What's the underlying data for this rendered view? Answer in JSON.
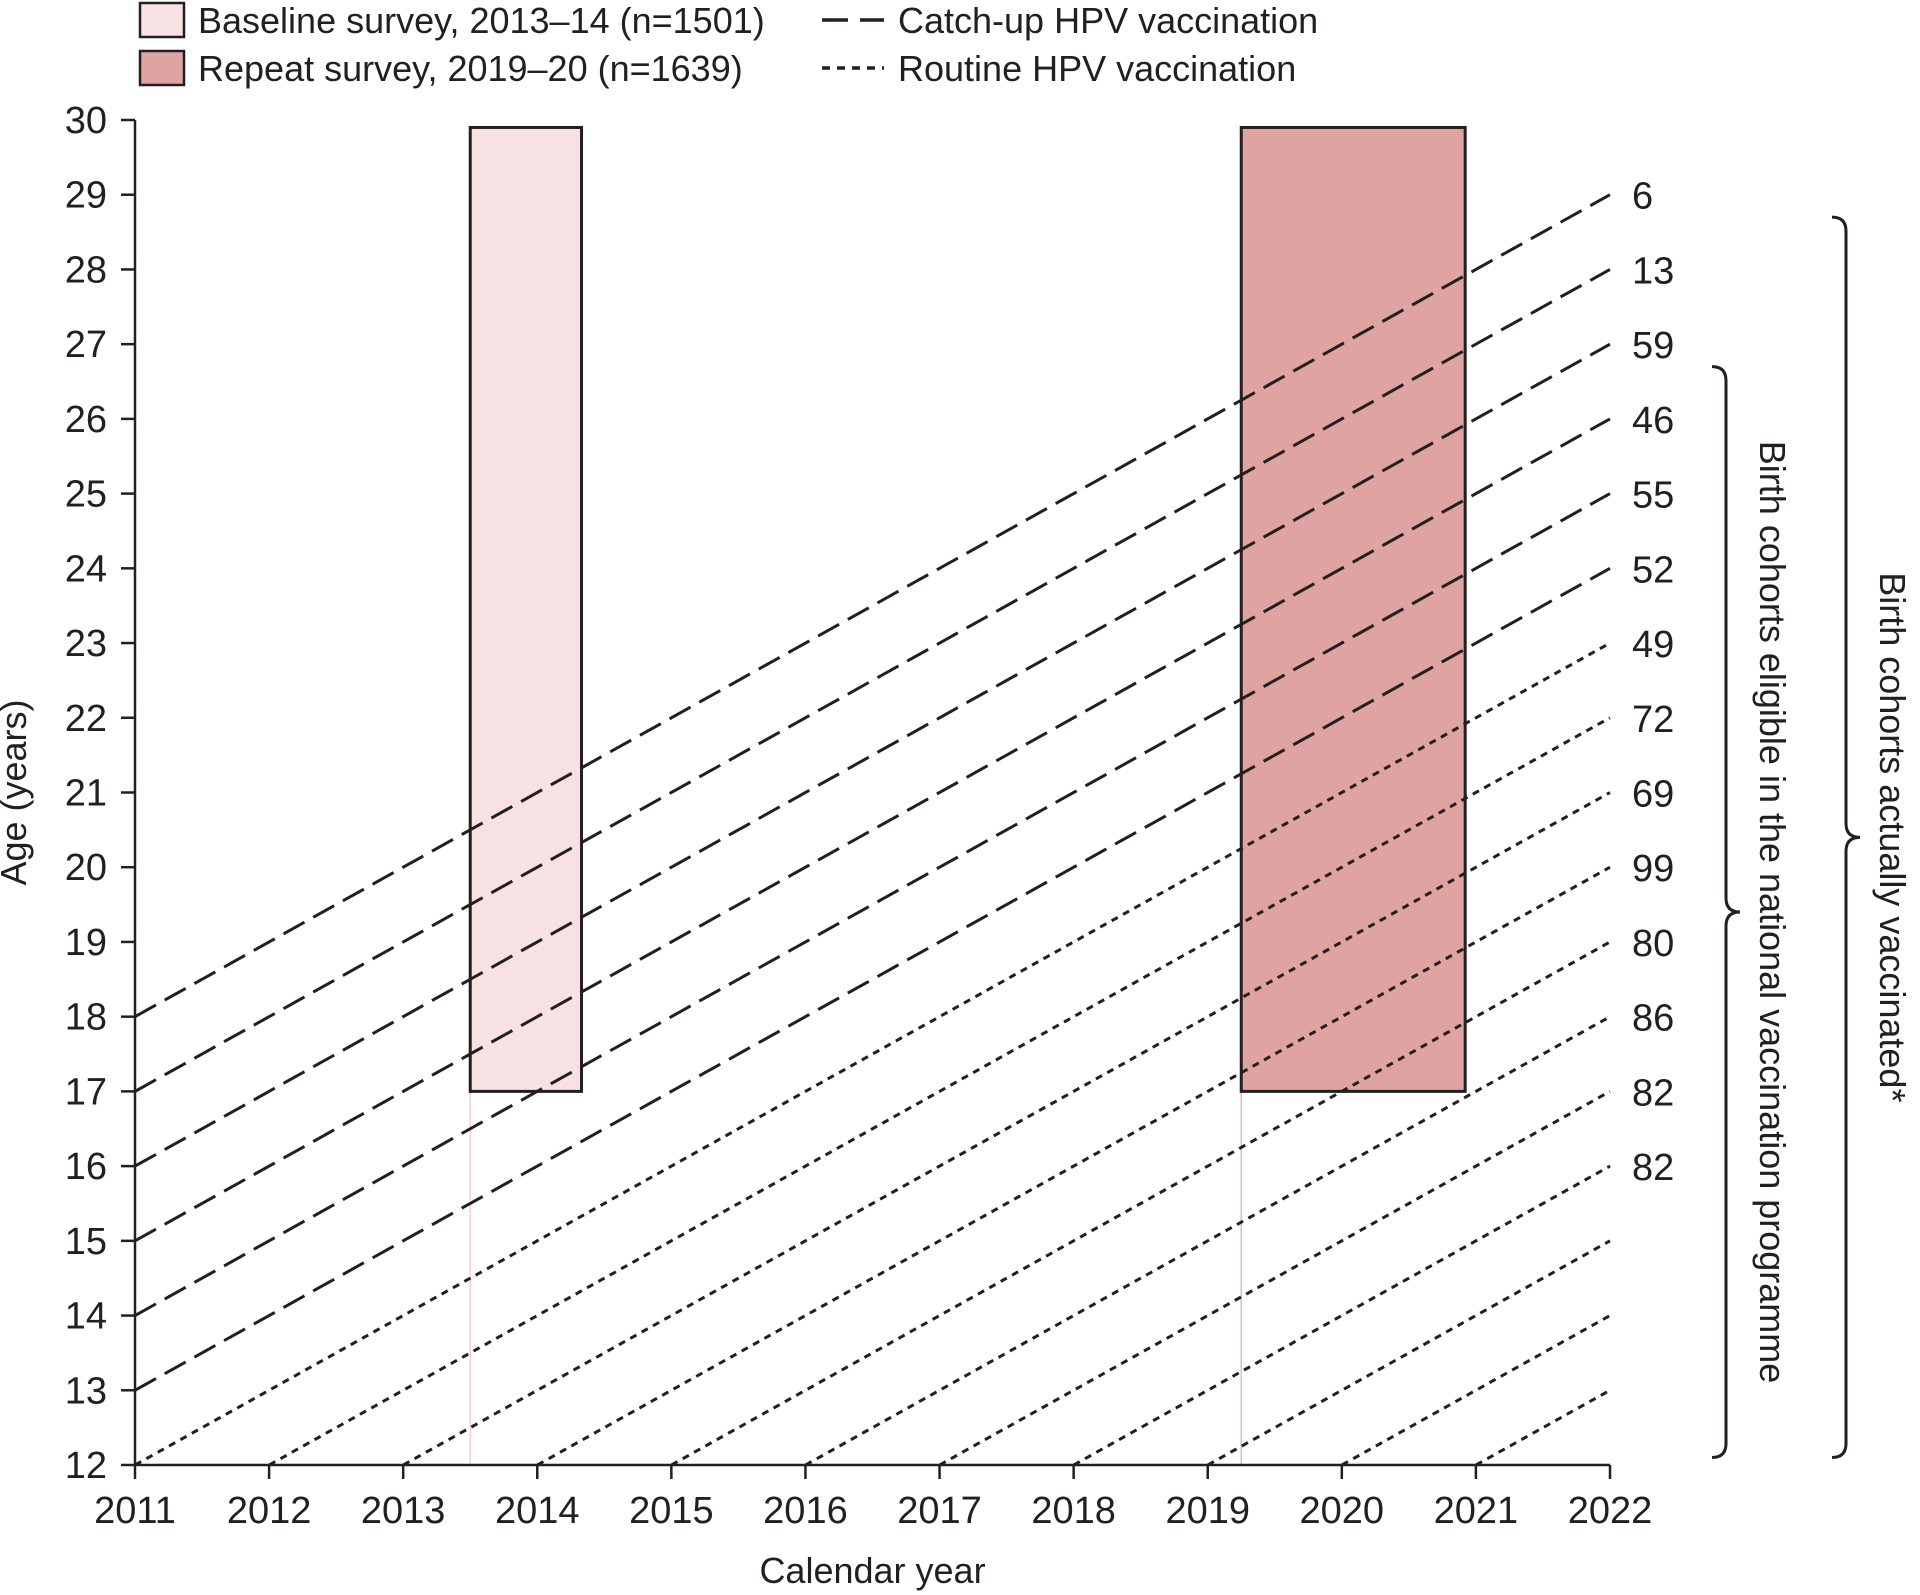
{
  "chart_data": {
    "type": "line",
    "title": "",
    "xlabel": "Calendar year",
    "ylabel": "Age (years)",
    "xlim": [
      2011,
      2022
    ],
    "ylim": [
      12,
      30
    ],
    "x_ticks": [
      "2011",
      "2012",
      "2013",
      "2014",
      "2015",
      "2016",
      "2017",
      "2018",
      "2019",
      "2020",
      "2021",
      "2022"
    ],
    "y_ticks": [
      "12",
      "13",
      "14",
      "15",
      "16",
      "17",
      "18",
      "19",
      "20",
      "21",
      "22",
      "23",
      "24",
      "25",
      "26",
      "27",
      "28",
      "29",
      "30"
    ],
    "grid": false,
    "legend": [
      {
        "label": "Baseline survey, 2013–14 (n=1501)",
        "kind": "box",
        "fill": "#f7e1e2"
      },
      {
        "label": "Repeat survey, 2019–20 (n=1639)",
        "kind": "box",
        "fill": "#dfa3a1"
      },
      {
        "label": "Catch-up HPV vaccination",
        "kind": "dashed"
      },
      {
        "label": "Routine HPV vaccination",
        "kind": "dotted"
      }
    ],
    "survey_boxes": [
      {
        "name": "Baseline survey",
        "x_start": 2013.5,
        "x_end": 2014.33,
        "age_min": 17,
        "age_max": 29.9,
        "fill": "#f7e1e2"
      },
      {
        "name": "Repeat survey",
        "x_start": 2019.25,
        "x_end": 2020.92,
        "age_min": 17,
        "age_max": 29.9,
        "fill": "#dfa3a1"
      }
    ],
    "cohorts": [
      {
        "label": "6",
        "style": "dashed",
        "x0": 2011,
        "y0": 18,
        "x1": 2022,
        "y1": 29
      },
      {
        "label": "13",
        "style": "dashed",
        "x0": 2011,
        "y0": 17,
        "x1": 2022,
        "y1": 28
      },
      {
        "label": "59",
        "style": "dashed",
        "x0": 2011,
        "y0": 16,
        "x1": 2022,
        "y1": 27
      },
      {
        "label": "46",
        "style": "dashed",
        "x0": 2011,
        "y0": 15,
        "x1": 2022,
        "y1": 26
      },
      {
        "label": "55",
        "style": "dashed",
        "x0": 2011,
        "y0": 14,
        "x1": 2022,
        "y1": 25
      },
      {
        "label": "52",
        "style": "dashed",
        "x0": 2011,
        "y0": 13,
        "x1": 2022,
        "y1": 24
      },
      {
        "label": "49",
        "style": "dotted",
        "x0": 2011,
        "y0": 12,
        "x1": 2022,
        "y1": 23
      },
      {
        "label": "72",
        "style": "dotted",
        "x0": 2012,
        "y0": 12,
        "x1": 2022,
        "y1": 22
      },
      {
        "label": "69",
        "style": "dotted",
        "x0": 2013,
        "y0": 12,
        "x1": 2022,
        "y1": 21
      },
      {
        "label": "99",
        "style": "dotted",
        "x0": 2014,
        "y0": 12,
        "x1": 2022,
        "y1": 20
      },
      {
        "label": "80",
        "style": "dotted",
        "x0": 2015,
        "y0": 12,
        "x1": 2022,
        "y1": 19
      },
      {
        "label": "86",
        "style": "dotted",
        "x0": 2016,
        "y0": 12,
        "x1": 2022,
        "y1": 18
      },
      {
        "label": "82",
        "style": "dotted",
        "x0": 2017,
        "y0": 12,
        "x1": 2022,
        "y1": 17
      },
      {
        "label": "82",
        "style": "dotted",
        "x0": 2018,
        "y0": 12,
        "x1": 2022,
        "y1": 16
      },
      {
        "label": "",
        "style": "dotted",
        "x0": 2019,
        "y0": 12,
        "x1": 2022,
        "y1": 15
      },
      {
        "label": "",
        "style": "dotted",
        "x0": 2020,
        "y0": 12,
        "x1": 2022,
        "y1": 14
      },
      {
        "label": "",
        "style": "dotted",
        "x0": 2021,
        "y0": 12,
        "x1": 2022,
        "y1": 13
      }
    ],
    "braces": [
      {
        "label": "Birth cohorts eligible in the national vaccination programme",
        "age_top": 26.7,
        "age_bottom": 12.1
      },
      {
        "label": "Birth cohorts actually vaccinated*",
        "age_top": 28.7,
        "age_bottom": 12.1
      }
    ]
  }
}
